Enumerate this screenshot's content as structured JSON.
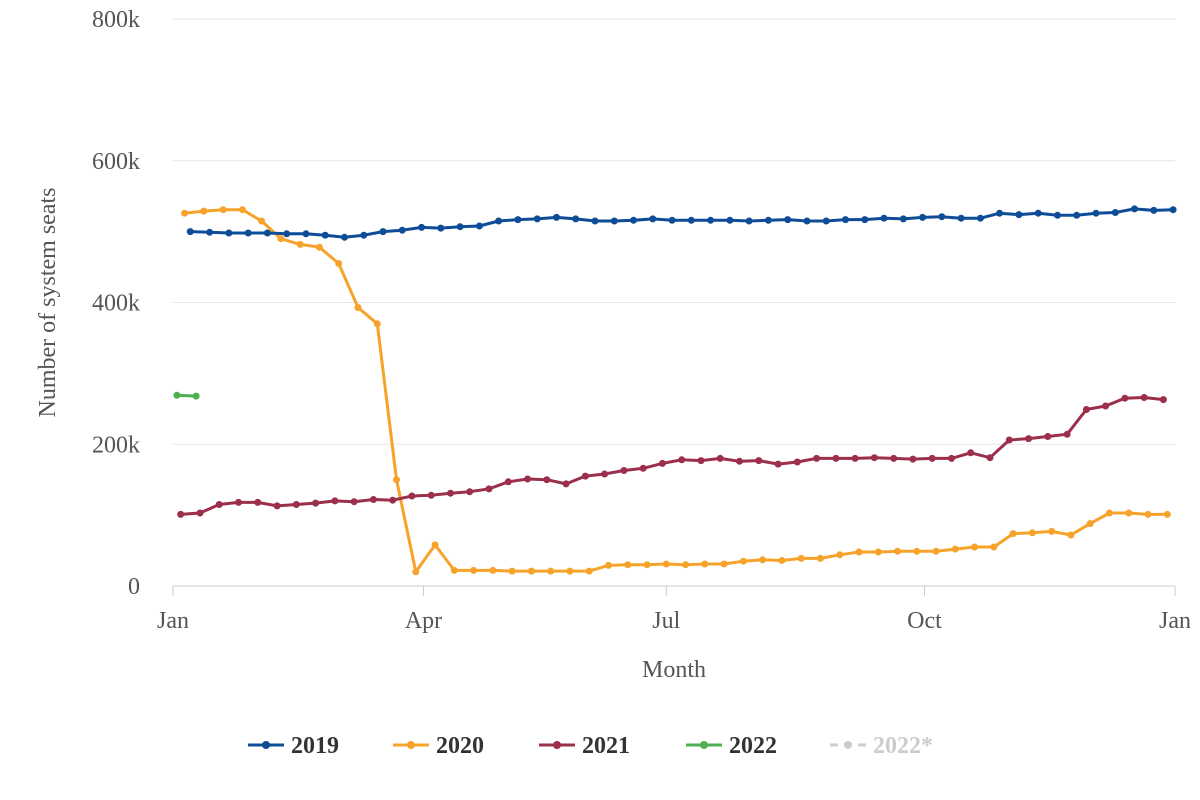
{
  "chart_data": {
    "type": "line",
    "title": "",
    "xlabel": "Month",
    "ylabel": "Number of system seats",
    "ylim": [
      0,
      800000
    ],
    "yticks": [
      {
        "value": 0,
        "label": "0"
      },
      {
        "value": 200000,
        "label": "200k"
      },
      {
        "value": 400000,
        "label": "400k"
      },
      {
        "value": 600000,
        "label": "600k"
      },
      {
        "value": 800000,
        "label": "800k"
      }
    ],
    "xlim_week": [
      1,
      53
    ],
    "xticks": [
      {
        "week": 1,
        "label": "Jan"
      },
      {
        "week": 14,
        "label": "Apr"
      },
      {
        "week": 26.6,
        "label": "Jul"
      },
      {
        "week": 40,
        "label": "Oct"
      },
      {
        "week": 53,
        "label": "Jan"
      }
    ],
    "grid": true,
    "legend_position": "bottom-center",
    "series": [
      {
        "name": "2019",
        "color": "#0f4c97",
        "visible": true,
        "dashed": false,
        "points": [
          [
            1.9,
            500000
          ],
          [
            2.9,
            499000
          ],
          [
            3.9,
            498000
          ],
          [
            4.9,
            498000
          ],
          [
            5.9,
            498000
          ],
          [
            6.9,
            497000
          ],
          [
            7.9,
            497000
          ],
          [
            8.9,
            495000
          ],
          [
            9.9,
            492000
          ],
          [
            10.9,
            495000
          ],
          [
            11.9,
            500000
          ],
          [
            12.9,
            502000
          ],
          [
            13.9,
            506000
          ],
          [
            14.9,
            505000
          ],
          [
            15.9,
            507000
          ],
          [
            16.9,
            508000
          ],
          [
            17.9,
            515000
          ],
          [
            18.9,
            517000
          ],
          [
            19.9,
            518000
          ],
          [
            20.9,
            520000
          ],
          [
            21.9,
            518000
          ],
          [
            22.9,
            515000
          ],
          [
            23.9,
            515000
          ],
          [
            24.9,
            516000
          ],
          [
            25.9,
            518000
          ],
          [
            26.9,
            516000
          ],
          [
            27.9,
            516000
          ],
          [
            28.9,
            516000
          ],
          [
            29.9,
            516000
          ],
          [
            30.9,
            515000
          ],
          [
            31.9,
            516000
          ],
          [
            32.9,
            517000
          ],
          [
            33.9,
            515000
          ],
          [
            34.9,
            515000
          ],
          [
            35.9,
            517000
          ],
          [
            36.9,
            517000
          ],
          [
            37.9,
            519000
          ],
          [
            38.9,
            518000
          ],
          [
            39.9,
            520000
          ],
          [
            40.9,
            521000
          ],
          [
            41.9,
            519000
          ],
          [
            42.9,
            519000
          ],
          [
            43.9,
            526000
          ],
          [
            44.9,
            524000
          ],
          [
            45.9,
            526000
          ],
          [
            46.9,
            523000
          ],
          [
            47.9,
            523000
          ],
          [
            48.9,
            526000
          ],
          [
            49.9,
            527000
          ],
          [
            50.9,
            532000
          ],
          [
            51.9,
            530000
          ],
          [
            52.9,
            531000
          ]
        ]
      },
      {
        "name": "2020",
        "color": "#f7a32b",
        "visible": true,
        "dashed": false,
        "points": [
          [
            1.6,
            526000
          ],
          [
            2.6,
            529000
          ],
          [
            3.6,
            531000
          ],
          [
            4.6,
            531000
          ],
          [
            5.6,
            515000
          ],
          [
            6.6,
            490000
          ],
          [
            7.6,
            482000
          ],
          [
            8.6,
            478000
          ],
          [
            9.6,
            455000
          ],
          [
            10.6,
            393000
          ],
          [
            11.6,
            370000
          ],
          [
            12.6,
            150000
          ],
          [
            13.6,
            20000
          ],
          [
            14.6,
            58000
          ],
          [
            15.6,
            22000
          ],
          [
            16.6,
            22000
          ],
          [
            17.6,
            22000
          ],
          [
            18.6,
            21000
          ],
          [
            19.6,
            21000
          ],
          [
            20.6,
            21000
          ],
          [
            21.6,
            21000
          ],
          [
            22.6,
            21000
          ],
          [
            23.6,
            29000
          ],
          [
            24.6,
            30000
          ],
          [
            25.6,
            30000
          ],
          [
            26.6,
            31000
          ],
          [
            27.6,
            30000
          ],
          [
            28.6,
            31000
          ],
          [
            29.6,
            31000
          ],
          [
            30.6,
            35000
          ],
          [
            31.6,
            37000
          ],
          [
            32.6,
            36000
          ],
          [
            33.6,
            39000
          ],
          [
            34.6,
            39000
          ],
          [
            35.6,
            44000
          ],
          [
            36.6,
            48000
          ],
          [
            37.6,
            48000
          ],
          [
            38.6,
            49000
          ],
          [
            39.6,
            49000
          ],
          [
            40.6,
            49000
          ],
          [
            41.6,
            52000
          ],
          [
            42.6,
            55000
          ],
          [
            43.6,
            55000
          ],
          [
            44.6,
            74000
          ],
          [
            45.6,
            75000
          ],
          [
            46.6,
            77000
          ],
          [
            47.6,
            72000
          ],
          [
            48.6,
            88000
          ],
          [
            49.6,
            103000
          ],
          [
            50.6,
            103000
          ],
          [
            51.6,
            101000
          ],
          [
            52.6,
            101000
          ]
        ]
      },
      {
        "name": "2021",
        "color": "#9b2f4c",
        "visible": true,
        "dashed": false,
        "points": [
          [
            1.4,
            101000
          ],
          [
            2.4,
            103000
          ],
          [
            3.4,
            115000
          ],
          [
            4.4,
            118000
          ],
          [
            5.4,
            118000
          ],
          [
            6.4,
            113000
          ],
          [
            7.4,
            115000
          ],
          [
            8.4,
            117000
          ],
          [
            9.4,
            120000
          ],
          [
            10.4,
            119000
          ],
          [
            11.4,
            122000
          ],
          [
            12.4,
            121000
          ],
          [
            13.4,
            127000
          ],
          [
            14.4,
            128000
          ],
          [
            15.4,
            131000
          ],
          [
            16.4,
            133000
          ],
          [
            17.4,
            137000
          ],
          [
            18.4,
            147000
          ],
          [
            19.4,
            151000
          ],
          [
            20.4,
            150000
          ],
          [
            21.4,
            144000
          ],
          [
            22.4,
            155000
          ],
          [
            23.4,
            158000
          ],
          [
            24.4,
            163000
          ],
          [
            25.4,
            166000
          ],
          [
            26.4,
            173000
          ],
          [
            27.4,
            178000
          ],
          [
            28.4,
            177000
          ],
          [
            29.4,
            180000
          ],
          [
            30.4,
            176000
          ],
          [
            31.4,
            177000
          ],
          [
            32.4,
            172000
          ],
          [
            33.4,
            175000
          ],
          [
            34.4,
            180000
          ],
          [
            35.4,
            180000
          ],
          [
            36.4,
            180000
          ],
          [
            37.4,
            181000
          ],
          [
            38.4,
            180000
          ],
          [
            39.4,
            179000
          ],
          [
            40.4,
            180000
          ],
          [
            41.4,
            180000
          ],
          [
            42.4,
            188000
          ],
          [
            43.4,
            181000
          ],
          [
            44.4,
            206000
          ],
          [
            45.4,
            208000
          ],
          [
            46.4,
            211000
          ],
          [
            47.4,
            214000
          ],
          [
            48.4,
            249000
          ],
          [
            49.4,
            254000
          ],
          [
            50.4,
            265000
          ],
          [
            51.4,
            266000
          ],
          [
            52.4,
            263000
          ]
        ]
      },
      {
        "name": "2022",
        "color": "#4cb050",
        "visible": true,
        "dashed": false,
        "points": [
          [
            1.2,
            269000
          ],
          [
            2.2,
            268000
          ]
        ]
      },
      {
        "name": "2022*",
        "color": "#cccccc",
        "visible": false,
        "dashed": true,
        "points": []
      }
    ]
  }
}
